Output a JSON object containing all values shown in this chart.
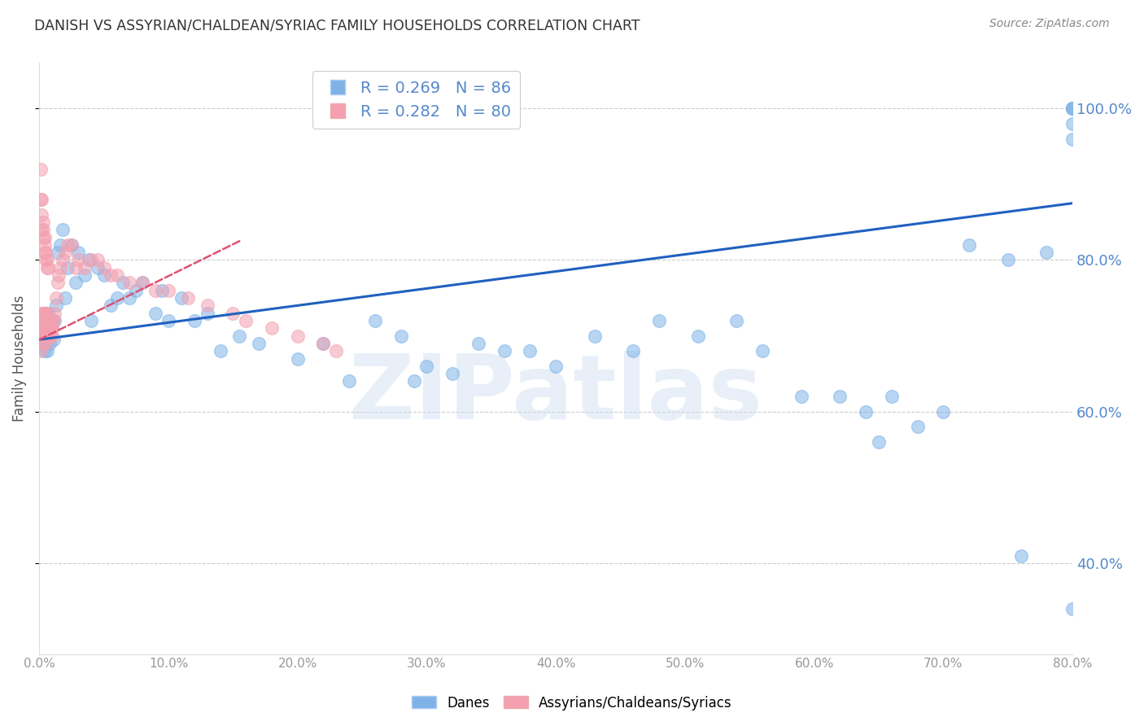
{
  "title": "DANISH VS ASSYRIAN/CHALDEAN/SYRIAC FAMILY HOUSEHOLDS CORRELATION CHART",
  "source": "Source: ZipAtlas.com",
  "ylabel": "Family Households",
  "xlim": [
    0.0,
    0.8
  ],
  "ylim": [
    0.28,
    1.06
  ],
  "yticks": [
    0.4,
    0.6,
    0.8,
    1.0
  ],
  "xticks": [
    0.0,
    0.1,
    0.2,
    0.3,
    0.4,
    0.5,
    0.6,
    0.7,
    0.8
  ],
  "danes_color": "#7fb3e8",
  "danes_edge_color": "#5a9ad4",
  "assyrians_color": "#f4a0b0",
  "assyrians_edge_color": "#e07090",
  "danes_line_color": "#2060c0",
  "assyrians_line_color": "#e05070",
  "danes_R": 0.269,
  "danes_N": 86,
  "assyrians_R": 0.282,
  "assyrians_N": 80,
  "legend_label_danes": "Danes",
  "legend_label_assyrians": "Assyrians/Chaldeans/Syriacs",
  "watermark": "ZIPatlas",
  "danes_line_x0": 0.0,
  "danes_line_x1": 0.8,
  "danes_line_y0": 0.695,
  "danes_line_y1": 0.875,
  "assyrians_line_x0": 0.0,
  "assyrians_line_x1": 0.155,
  "assyrians_line_y0": 0.695,
  "assyrians_line_y1": 0.825,
  "danes_scatter_x": [
    0.001,
    0.002,
    0.002,
    0.003,
    0.003,
    0.003,
    0.004,
    0.004,
    0.004,
    0.005,
    0.005,
    0.005,
    0.006,
    0.006,
    0.007,
    0.007,
    0.008,
    0.008,
    0.009,
    0.01,
    0.011,
    0.012,
    0.013,
    0.014,
    0.016,
    0.018,
    0.02,
    0.022,
    0.025,
    0.028,
    0.03,
    0.035,
    0.038,
    0.04,
    0.045,
    0.05,
    0.055,
    0.06,
    0.065,
    0.07,
    0.075,
    0.08,
    0.09,
    0.095,
    0.1,
    0.11,
    0.12,
    0.13,
    0.14,
    0.155,
    0.17,
    0.2,
    0.22,
    0.24,
    0.26,
    0.28,
    0.29,
    0.3,
    0.32,
    0.34,
    0.36,
    0.38,
    0.4,
    0.43,
    0.46,
    0.48,
    0.51,
    0.54,
    0.56,
    0.59,
    0.62,
    0.64,
    0.65,
    0.66,
    0.68,
    0.7,
    0.72,
    0.75,
    0.76,
    0.78,
    0.8,
    0.8,
    0.8,
    0.8,
    0.8,
    0.8
  ],
  "danes_scatter_y": [
    0.7,
    0.71,
    0.72,
    0.69,
    0.71,
    0.73,
    0.68,
    0.7,
    0.72,
    0.695,
    0.71,
    0.73,
    0.68,
    0.72,
    0.7,
    0.73,
    0.69,
    0.715,
    0.71,
    0.72,
    0.695,
    0.72,
    0.74,
    0.81,
    0.82,
    0.84,
    0.75,
    0.79,
    0.82,
    0.77,
    0.81,
    0.78,
    0.8,
    0.72,
    0.79,
    0.78,
    0.74,
    0.75,
    0.77,
    0.75,
    0.76,
    0.77,
    0.73,
    0.76,
    0.72,
    0.75,
    0.72,
    0.73,
    0.68,
    0.7,
    0.69,
    0.67,
    0.69,
    0.64,
    0.72,
    0.7,
    0.64,
    0.66,
    0.65,
    0.69,
    0.68,
    0.68,
    0.66,
    0.7,
    0.68,
    0.72,
    0.7,
    0.72,
    0.68,
    0.62,
    0.62,
    0.6,
    0.56,
    0.62,
    0.58,
    0.6,
    0.82,
    0.8,
    0.41,
    0.81,
    1.0,
    1.0,
    1.0,
    0.98,
    0.96,
    0.34
  ],
  "assyrians_scatter_x": [
    0.001,
    0.001,
    0.001,
    0.002,
    0.002,
    0.002,
    0.002,
    0.003,
    0.003,
    0.003,
    0.003,
    0.003,
    0.004,
    0.004,
    0.004,
    0.004,
    0.005,
    0.005,
    0.005,
    0.005,
    0.005,
    0.006,
    0.006,
    0.006,
    0.007,
    0.007,
    0.007,
    0.008,
    0.008,
    0.008,
    0.009,
    0.009,
    0.01,
    0.01,
    0.011,
    0.012,
    0.013,
    0.014,
    0.015,
    0.016,
    0.018,
    0.02,
    0.022,
    0.025,
    0.028,
    0.03,
    0.035,
    0.04,
    0.045,
    0.05,
    0.055,
    0.06,
    0.07,
    0.08,
    0.09,
    0.1,
    0.115,
    0.13,
    0.15,
    0.16,
    0.18,
    0.2,
    0.22,
    0.23,
    0.001,
    0.001,
    0.002,
    0.002,
    0.002,
    0.003,
    0.003,
    0.003,
    0.004,
    0.004,
    0.004,
    0.005,
    0.005,
    0.006,
    0.006,
    0.007
  ],
  "assyrians_scatter_y": [
    0.7,
    0.72,
    0.68,
    0.72,
    0.73,
    0.71,
    0.7,
    0.72,
    0.73,
    0.7,
    0.71,
    0.69,
    0.71,
    0.73,
    0.72,
    0.7,
    0.72,
    0.73,
    0.71,
    0.7,
    0.69,
    0.71,
    0.73,
    0.7,
    0.71,
    0.72,
    0.7,
    0.71,
    0.72,
    0.7,
    0.71,
    0.72,
    0.71,
    0.7,
    0.72,
    0.73,
    0.75,
    0.77,
    0.78,
    0.79,
    0.8,
    0.81,
    0.82,
    0.82,
    0.79,
    0.8,
    0.79,
    0.8,
    0.8,
    0.79,
    0.78,
    0.78,
    0.77,
    0.77,
    0.76,
    0.76,
    0.75,
    0.74,
    0.73,
    0.72,
    0.71,
    0.7,
    0.69,
    0.68,
    0.92,
    0.88,
    0.88,
    0.86,
    0.84,
    0.85,
    0.84,
    0.83,
    0.83,
    0.82,
    0.81,
    0.81,
    0.8,
    0.8,
    0.79,
    0.79
  ]
}
